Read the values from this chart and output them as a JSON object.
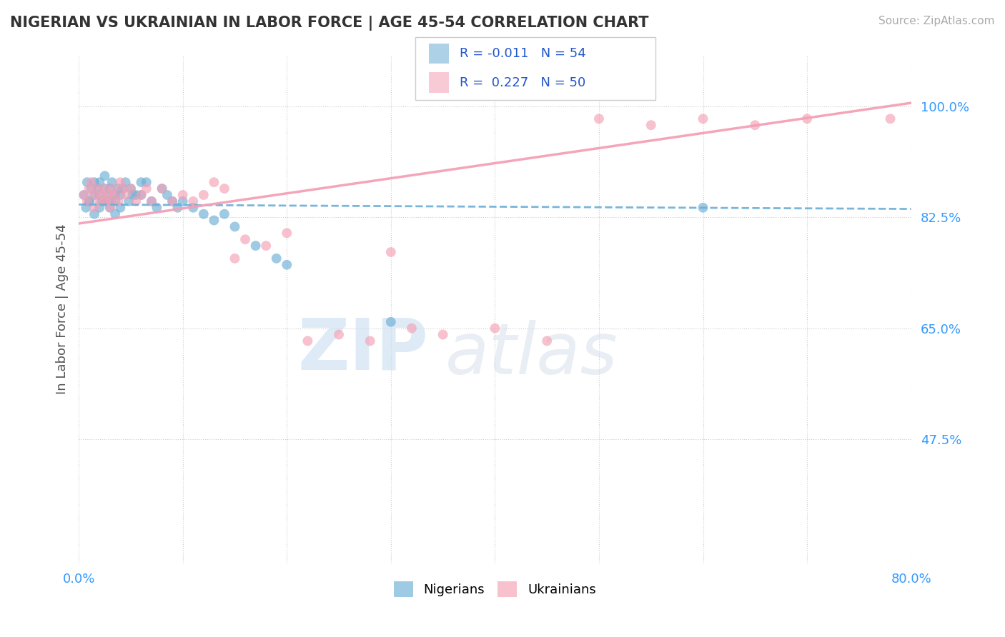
{
  "title": "NIGERIAN VS UKRAINIAN IN LABOR FORCE | AGE 45-54 CORRELATION CHART",
  "source": "Source: ZipAtlas.com",
  "ylabel": "In Labor Force | Age 45-54",
  "xlim": [
    0.0,
    0.8
  ],
  "ylim": [
    0.28,
    1.08
  ],
  "xticks": [
    0.0,
    0.1,
    0.2,
    0.3,
    0.4,
    0.5,
    0.6,
    0.7,
    0.8
  ],
  "xticklabels": [
    "0.0%",
    "",
    "",
    "",
    "",
    "",
    "",
    "",
    "80.0%"
  ],
  "ytick_positions": [
    0.475,
    0.65,
    0.825,
    1.0
  ],
  "ytick_labels": [
    "47.5%",
    "65.0%",
    "82.5%",
    "100.0%"
  ],
  "nigerian_color": "#6baed6",
  "ukrainian_color": "#f4a0b5",
  "nigerian_R": -0.011,
  "nigerian_N": 54,
  "ukrainian_R": 0.227,
  "ukrainian_N": 50,
  "watermark_zip": "ZIP",
  "watermark_atlas": "atlas",
  "nigerian_x": [
    0.005,
    0.008,
    0.01,
    0.012,
    0.015,
    0.015,
    0.018,
    0.02,
    0.02,
    0.022,
    0.025,
    0.025,
    0.028,
    0.03,
    0.03,
    0.032,
    0.035,
    0.035,
    0.038,
    0.04,
    0.04,
    0.042,
    0.045,
    0.048,
    0.05,
    0.052,
    0.055,
    0.06,
    0.06,
    0.065,
    0.07,
    0.075,
    0.08,
    0.085,
    0.09,
    0.095,
    0.1,
    0.11,
    0.12,
    0.13,
    0.14,
    0.15,
    0.17,
    0.19,
    0.2,
    0.007,
    0.01,
    0.015,
    0.02,
    0.025,
    0.03,
    0.035,
    0.3,
    0.6
  ],
  "nigerian_y": [
    0.86,
    0.88,
    0.85,
    0.87,
    0.86,
    0.88,
    0.87,
    0.86,
    0.88,
    0.85,
    0.87,
    0.89,
    0.86,
    0.85,
    0.87,
    0.88,
    0.86,
    0.85,
    0.87,
    0.86,
    0.84,
    0.87,
    0.88,
    0.85,
    0.87,
    0.86,
    0.86,
    0.88,
    0.86,
    0.88,
    0.85,
    0.84,
    0.87,
    0.86,
    0.85,
    0.84,
    0.85,
    0.84,
    0.83,
    0.82,
    0.83,
    0.81,
    0.78,
    0.76,
    0.75,
    0.84,
    0.85,
    0.83,
    0.84,
    0.85,
    0.84,
    0.83,
    0.66,
    0.84
  ],
  "ukrainian_x": [
    0.005,
    0.008,
    0.01,
    0.012,
    0.015,
    0.015,
    0.018,
    0.02,
    0.022,
    0.025,
    0.025,
    0.028,
    0.03,
    0.03,
    0.032,
    0.035,
    0.038,
    0.04,
    0.042,
    0.045,
    0.05,
    0.055,
    0.06,
    0.065,
    0.07,
    0.08,
    0.09,
    0.1,
    0.11,
    0.12,
    0.13,
    0.14,
    0.15,
    0.16,
    0.18,
    0.2,
    0.22,
    0.25,
    0.28,
    0.3,
    0.32,
    0.35,
    0.4,
    0.45,
    0.5,
    0.55,
    0.6,
    0.65,
    0.7,
    0.78
  ],
  "ukrainian_y": [
    0.86,
    0.85,
    0.87,
    0.88,
    0.86,
    0.84,
    0.87,
    0.85,
    0.86,
    0.85,
    0.87,
    0.86,
    0.85,
    0.84,
    0.87,
    0.86,
    0.85,
    0.88,
    0.87,
    0.86,
    0.87,
    0.85,
    0.86,
    0.87,
    0.85,
    0.87,
    0.85,
    0.86,
    0.85,
    0.86,
    0.88,
    0.87,
    0.76,
    0.79,
    0.78,
    0.8,
    0.63,
    0.64,
    0.63,
    0.77,
    0.65,
    0.64,
    0.65,
    0.63,
    0.98,
    0.97,
    0.98,
    0.97,
    0.98,
    0.98
  ],
  "nig_line_x0": 0.0,
  "nig_line_y0": 0.845,
  "nig_line_x1": 0.8,
  "nig_line_y1": 0.838,
  "ukr_line_x0": 0.0,
  "ukr_line_y0": 0.815,
  "ukr_line_x1": 0.8,
  "ukr_line_y1": 1.005
}
